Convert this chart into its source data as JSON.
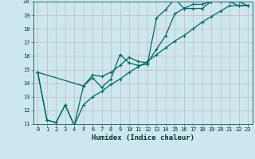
{
  "xlabel": "Humidex (Indice chaleur)",
  "bg_color": "#cce8ee",
  "grid_color": "#aacccc",
  "line_color": "#006666",
  "xlim": [
    -0.5,
    23.5
  ],
  "ylim": [
    11,
    20
  ],
  "xticks": [
    0,
    1,
    2,
    3,
    4,
    5,
    6,
    7,
    8,
    9,
    10,
    11,
    12,
    13,
    14,
    15,
    16,
    17,
    18,
    19,
    20,
    21,
    22,
    23
  ],
  "yticks": [
    11,
    12,
    13,
    14,
    15,
    16,
    17,
    18,
    19,
    20
  ],
  "line1_x": [
    0,
    1,
    2,
    3,
    4,
    5,
    6,
    7,
    8,
    9,
    10,
    11,
    12,
    13,
    14,
    15,
    16,
    17,
    18,
    19,
    20,
    21,
    22,
    23
  ],
  "line1_y": [
    14.8,
    11.3,
    11.1,
    12.4,
    10.9,
    13.8,
    14.4,
    13.7,
    14.3,
    16.1,
    15.5,
    15.3,
    15.4,
    18.8,
    19.4,
    20.2,
    19.5,
    19.5,
    19.5,
    20.0,
    20.0,
    20.0,
    20.0,
    19.7
  ],
  "line2_x": [
    0,
    1,
    2,
    3,
    4,
    5,
    6,
    7,
    8,
    9,
    10,
    11,
    12,
    13,
    14,
    15,
    16,
    17,
    18,
    19,
    20,
    21,
    22,
    23
  ],
  "line2_y": [
    14.8,
    11.3,
    11.1,
    12.4,
    10.9,
    12.4,
    13.0,
    13.4,
    13.9,
    14.3,
    14.8,
    15.2,
    15.6,
    16.1,
    16.6,
    17.1,
    17.5,
    18.0,
    18.5,
    18.9,
    19.3,
    19.7,
    19.7,
    19.7
  ],
  "line3_x": [
    0,
    5,
    6,
    7,
    8,
    9,
    10,
    11,
    12,
    13,
    14,
    15,
    16,
    17,
    18,
    19,
    20,
    21,
    22,
    23
  ],
  "line3_y": [
    14.8,
    13.8,
    14.6,
    14.5,
    14.8,
    15.3,
    15.9,
    15.6,
    15.5,
    16.5,
    17.5,
    19.1,
    19.5,
    19.8,
    19.8,
    20.0,
    20.0,
    20.0,
    19.7,
    19.7
  ]
}
